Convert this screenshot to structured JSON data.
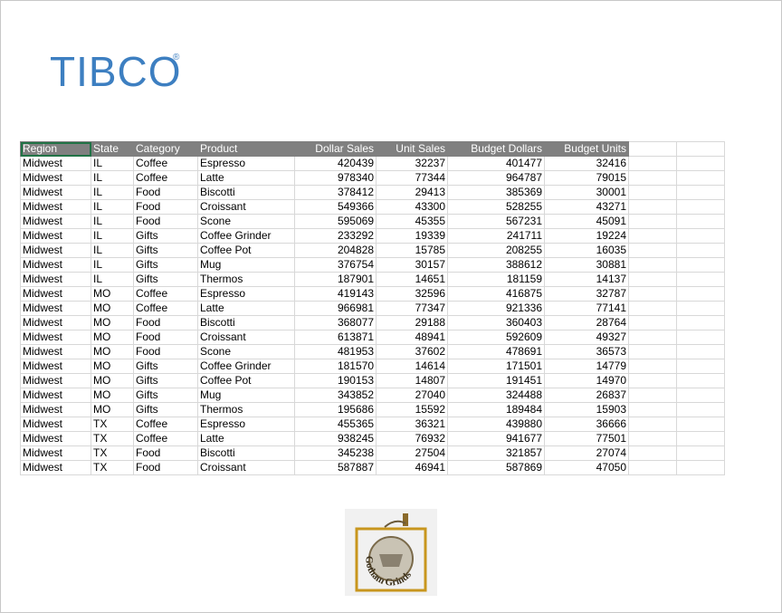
{
  "header": {
    "logo": "TIBCO",
    "registered": "®"
  },
  "table": {
    "columns": [
      "Region",
      "State",
      "Category",
      "Product",
      "Dollar Sales",
      "Unit Sales",
      "Budget Dollars",
      "Budget Units"
    ],
    "rows": [
      [
        "Midwest",
        "IL",
        "Coffee",
        "Espresso",
        420439,
        32237,
        401477,
        32416
      ],
      [
        "Midwest",
        "IL",
        "Coffee",
        "Latte",
        978340,
        77344,
        964787,
        79015
      ],
      [
        "Midwest",
        "IL",
        "Food",
        "Biscotti",
        378412,
        29413,
        385369,
        30001
      ],
      [
        "Midwest",
        "IL",
        "Food",
        "Croissant",
        549366,
        43300,
        528255,
        43271
      ],
      [
        "Midwest",
        "IL",
        "Food",
        "Scone",
        595069,
        45355,
        567231,
        45091
      ],
      [
        "Midwest",
        "IL",
        "Gifts",
        "Coffee Grinder",
        233292,
        19339,
        241711,
        19224
      ],
      [
        "Midwest",
        "IL",
        "Gifts",
        "Coffee Pot",
        204828,
        15785,
        208255,
        16035
      ],
      [
        "Midwest",
        "IL",
        "Gifts",
        "Mug",
        376754,
        30157,
        388612,
        30881
      ],
      [
        "Midwest",
        "IL",
        "Gifts",
        "Thermos",
        187901,
        14651,
        181159,
        14137
      ],
      [
        "Midwest",
        "MO",
        "Coffee",
        "Espresso",
        419143,
        32596,
        416875,
        32787
      ],
      [
        "Midwest",
        "MO",
        "Coffee",
        "Latte",
        966981,
        77347,
        921336,
        77141
      ],
      [
        "Midwest",
        "MO",
        "Food",
        "Biscotti",
        368077,
        29188,
        360403,
        28764
      ],
      [
        "Midwest",
        "MO",
        "Food",
        "Croissant",
        613871,
        48941,
        592609,
        49327
      ],
      [
        "Midwest",
        "MO",
        "Food",
        "Scone",
        481953,
        37602,
        478691,
        36573
      ],
      [
        "Midwest",
        "MO",
        "Gifts",
        "Coffee Grinder",
        181570,
        14614,
        171501,
        14779
      ],
      [
        "Midwest",
        "MO",
        "Gifts",
        "Coffee Pot",
        190153,
        14807,
        191451,
        14970
      ],
      [
        "Midwest",
        "MO",
        "Gifts",
        "Mug",
        343852,
        27040,
        324488,
        26837
      ],
      [
        "Midwest",
        "MO",
        "Gifts",
        "Thermos",
        195686,
        15592,
        189484,
        15903
      ],
      [
        "Midwest",
        "TX",
        "Coffee",
        "Espresso",
        455365,
        36321,
        439880,
        36666
      ],
      [
        "Midwest",
        "TX",
        "Coffee",
        "Latte",
        938245,
        76932,
        941677,
        77501
      ],
      [
        "Midwest",
        "TX",
        "Food",
        "Biscotti",
        345238,
        27504,
        321857,
        27074
      ],
      [
        "Midwest",
        "TX",
        "Food",
        "Croissant",
        587887,
        46941,
        587869,
        47050
      ]
    ]
  },
  "footer": {
    "logo_text": "Gotham Grinds"
  }
}
